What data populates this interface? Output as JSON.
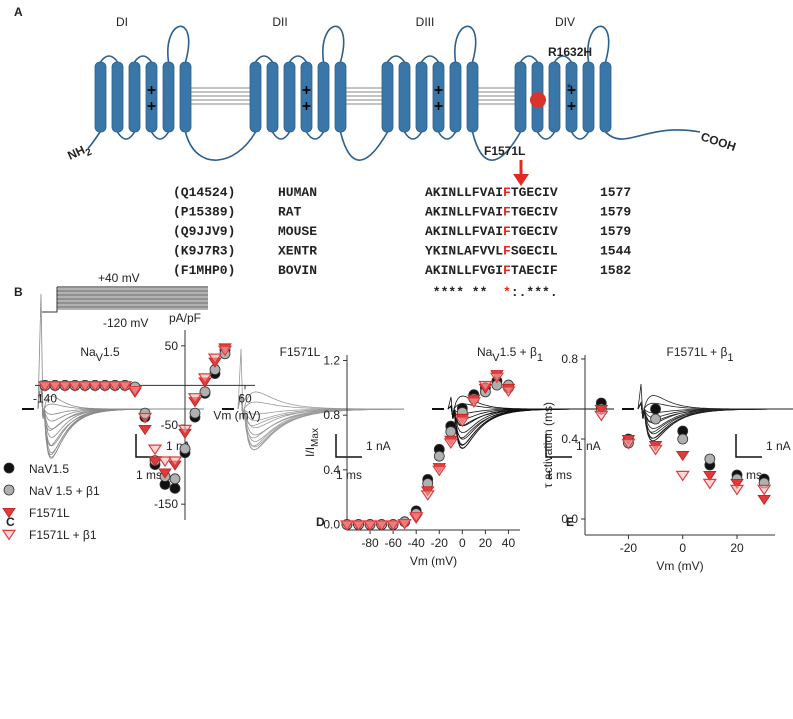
{
  "panel_labels": [
    "A",
    "B",
    "C",
    "D",
    "E"
  ],
  "channel": {
    "domains": [
      "DI",
      "DII",
      "DIII",
      "DIV"
    ],
    "n_terminus": {
      "main": "NH",
      "sub": "2"
    },
    "c_terminus": "COOH",
    "mutations": [
      "R1632H",
      "F1571L"
    ]
  },
  "alignment": {
    "rows": [
      {
        "id": "(Q14524)",
        "species": "HUMAN",
        "pre": "AKINLLFVAI",
        "mut": "F",
        "post": "TGECIV",
        "position": 1577
      },
      {
        "id": "(P15389)",
        "species": "RAT",
        "pre": "AKINLLFVAI",
        "mut": "F",
        "post": "TGECIV",
        "position": 1579
      },
      {
        "id": "(Q9JJV9)",
        "species": "MOUSE",
        "pre": "AKINLLFVAI",
        "mut": "F",
        "post": "TGECIV",
        "position": 1579
      },
      {
        "id": "(K9J7R3)",
        "species": "XENTR",
        "pre": "YKINLAFVVL",
        "mut": "F",
        "post": "SGECIL",
        "position": 1544
      },
      {
        "id": "(F1MHP0)",
        "species": "BOVIN",
        "pre": "AKINLLFVGI",
        "mut": "F",
        "post": "TAECIF",
        "position": 1582
      }
    ],
    "conservation": {
      "pre": " **** **  ",
      "mut": "*",
      "post": ":.***."
    }
  },
  "traces": {
    "protocol": {
      "high": "+40 mV",
      "low": "-120 mV"
    },
    "panels": [
      {
        "title_parts": [
          {
            "text": "Na"
          },
          {
            "text": "V",
            "sub": true
          },
          {
            "text": "1.5"
          }
        ]
      },
      {
        "title_parts": [
          {
            "text": "F1571L"
          }
        ]
      },
      {
        "title_parts": [
          {
            "text": "Na"
          },
          {
            "text": "V",
            "sub": true
          },
          {
            "text": "1.5 + β"
          },
          {
            "text": "1",
            "sub": true
          }
        ]
      },
      {
        "title_parts": [
          {
            "text": "F1571L + β"
          },
          {
            "text": "1",
            "sub": true
          }
        ]
      }
    ],
    "current_scale": "1 nA",
    "time_scale": "1 ms"
  },
  "chart_data": [
    {
      "type": "scatter",
      "ylabel": "pA/pF",
      "xlabel": "Vm (mV)",
      "axes_cross_at_zero": true,
      "legend": "lower left",
      "x": [
        -140,
        -130,
        -120,
        -110,
        -100,
        -90,
        -80,
        -70,
        -60,
        -50,
        -40,
        -30,
        -20,
        -10,
        0,
        10,
        20,
        30,
        40
      ],
      "xlim": [
        -150,
        70
      ],
      "ylim": [
        -170,
        70
      ],
      "xticks": [
        -140,
        60
      ],
      "yticks": [
        50,
        -50,
        -150
      ],
      "series": [
        {
          "name": "NaV1.5",
          "color": "#111111",
          "marker": "circle",
          "values": [
            0,
            0,
            0,
            0,
            0,
            0,
            0,
            0,
            0,
            -3,
            -40,
            -100,
            -125,
            -130,
            -85,
            -40,
            -10,
            15,
            45
          ]
        },
        {
          "name": "NaV 1.5 + β1",
          "color": "#b0b0b0",
          "marker": "circle",
          "values": [
            0,
            0,
            0,
            0,
            0,
            0,
            0,
            0,
            0,
            -2,
            -35,
            -95,
            -115,
            -118,
            -80,
            -35,
            -8,
            20,
            40
          ]
        },
        {
          "name": "F1571L",
          "color": "#e03a3a",
          "marker": "triangle-down",
          "values": [
            0,
            0,
            0,
            0,
            0,
            0,
            0,
            0,
            0,
            -8,
            -55,
            -95,
            -110,
            -100,
            -60,
            -20,
            5,
            30,
            48
          ]
        },
        {
          "name": "F1571L + β1",
          "color": "#f6b4b4",
          "marker": "triangle-down-open",
          "values": [
            0,
            0,
            0,
            0,
            0,
            0,
            0,
            0,
            0,
            -6,
            -40,
            -80,
            -95,
            -95,
            -55,
            -15,
            10,
            35,
            45
          ]
        }
      ]
    },
    {
      "type": "scatter",
      "ylabel": "I/I",
      "ylabel_sub": "Max",
      "xlabel": "Vm (mV)",
      "x": [
        -100,
        -90,
        -80,
        -70,
        -60,
        -50,
        -40,
        -30,
        -20,
        -10,
        0,
        10,
        20,
        30,
        40
      ],
      "xlim": [
        -100,
        50
      ],
      "ylim": [
        -0.04,
        1.24
      ],
      "xticks": [
        -80,
        -60,
        -40,
        -20,
        0,
        20,
        40
      ],
      "yticks": [
        {
          "value": 0,
          "label": "0.0"
        },
        0.4,
        0.8,
        1.2
      ],
      "series": [
        {
          "name": "NaV1.5",
          "color": "#111111",
          "marker": "circle",
          "values": [
            0,
            0,
            0,
            0,
            0,
            0.02,
            0.1,
            0.33,
            0.55,
            0.72,
            0.85,
            0.95,
            1.0,
            1.05,
            1.0
          ]
        },
        {
          "name": "NaV 1.5 + β1",
          "color": "#b0b0b0",
          "marker": "circle",
          "values": [
            0,
            0,
            0,
            0,
            0,
            0.02,
            0.08,
            0.3,
            0.5,
            0.68,
            0.82,
            0.92,
            0.97,
            1.02,
            1.02
          ]
        },
        {
          "name": "F1571L",
          "color": "#e03a3a",
          "marker": "triangle-down",
          "values": [
            0,
            0,
            0,
            0,
            0,
            0.01,
            0.05,
            0.25,
            0.42,
            0.62,
            0.78,
            0.92,
            1.0,
            1.1,
            1.0
          ]
        },
        {
          "name": "F1571L + β1",
          "color": "#f6b4b4",
          "marker": "triangle-down-open",
          "values": [
            0,
            0,
            0,
            0,
            0,
            0.01,
            0.06,
            0.22,
            0.4,
            0.6,
            0.76,
            0.9,
            1.02,
            1.08,
            0.98
          ]
        }
      ]
    },
    {
      "type": "scatter",
      "ylabel": "τ activation (ms)",
      "xlabel": "Vm (mV)",
      "x": [
        -30,
        -20,
        -10,
        0,
        10,
        20,
        30
      ],
      "xlim": [
        -36,
        34
      ],
      "ylim": [
        -0.08,
        0.82
      ],
      "xticks": [
        -20,
        0,
        20
      ],
      "yticks": [
        {
          "value": 0,
          "label": "0.0"
        },
        0.4,
        0.8
      ],
      "series": [
        {
          "name": "NaV1.5",
          "color": "#111111",
          "marker": "circle",
          "values": [
            0.58,
            0.4,
            0.55,
            0.44,
            0.27,
            0.22,
            0.2
          ]
        },
        {
          "name": "NaV 1.5 + β1",
          "color": "#b0b0b0",
          "marker": "circle",
          "values": [
            0.55,
            0.38,
            0.5,
            0.4,
            0.3,
            0.2,
            0.18
          ]
        },
        {
          "name": "F1571L",
          "color": "#e03a3a",
          "marker": "triangle-down",
          "values": [
            0.55,
            0.4,
            0.37,
            0.32,
            0.22,
            0.18,
            0.1
          ]
        },
        {
          "name": "F1571L + β1",
          "color": "#f6b4b4",
          "marker": "triangle-down-open",
          "values": [
            0.52,
            0.38,
            0.35,
            0.22,
            0.18,
            0.15,
            0.15
          ]
        }
      ]
    }
  ]
}
